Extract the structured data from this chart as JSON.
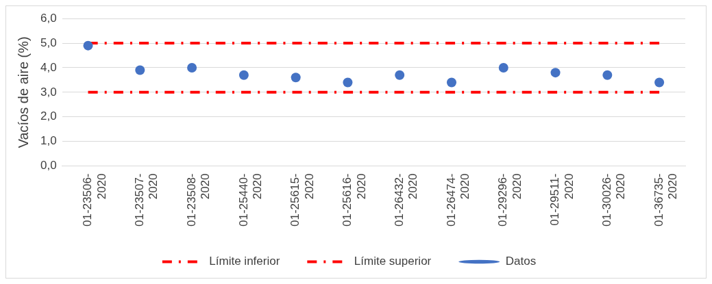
{
  "chart_data": {
    "type": "scatter",
    "ylabel": "Vacíos de aire (%)",
    "categories": [
      "01-23506-2020",
      "01-23507-2020",
      "01-23508-2020",
      "01-25440-2020",
      "01-25615-2020",
      "01-25616-2020",
      "01-26432-2020",
      "01-26474-2020",
      "01-29296-2020",
      "01-29511-2020",
      "01-30026-2020",
      "01-36735-2020"
    ],
    "series": [
      {
        "name": "Límite inferior",
        "type": "line",
        "color": "#ff0000",
        "line_style": "dashed",
        "marker": "none",
        "values": [
          3,
          3,
          3,
          3,
          3,
          3,
          3,
          3,
          3,
          3,
          3,
          3
        ]
      },
      {
        "name": "Límite superior",
        "type": "line",
        "color": "#ff0000",
        "line_style": "dashed",
        "marker": "none",
        "values": [
          5,
          5,
          5,
          5,
          5,
          5,
          5,
          5,
          5,
          5,
          5,
          5
        ]
      },
      {
        "name": "Datos",
        "color": "#4472c4",
        "marker": "circle",
        "values": [
          4.9,
          3.9,
          4.0,
          3.7,
          3.6,
          3.4,
          3.7,
          3.4,
          4.0,
          3.8,
          3.7,
          3.4
        ]
      }
    ],
    "ylim": [
      0,
      6
    ],
    "yticks": [
      {
        "value": 0,
        "label": "0,0"
      },
      {
        "value": 1,
        "label": "1,0"
      },
      {
        "value": 2,
        "label": "2,0"
      },
      {
        "value": 3,
        "label": "3,0"
      },
      {
        "value": 4,
        "label": "4,0"
      },
      {
        "value": 5,
        "label": "5,0"
      },
      {
        "value": 6,
        "label": "6,0"
      }
    ],
    "grid": "y",
    "legend": "bottom"
  }
}
